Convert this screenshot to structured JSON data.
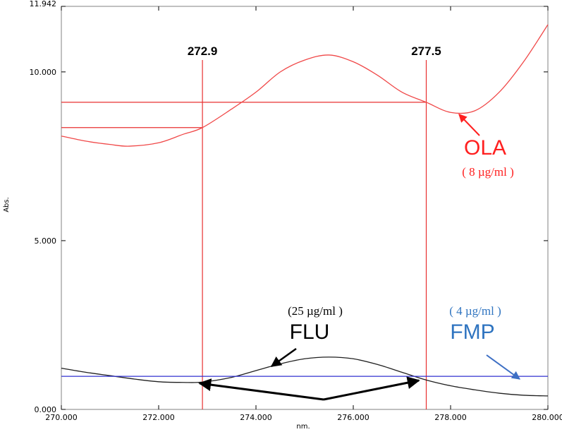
{
  "chart_data": {
    "type": "line",
    "xlabel": "nm.",
    "ylabel": "Abs.",
    "xlim": [
      270.0,
      280.0
    ],
    "ylim": [
      0.0,
      11.942
    ],
    "x_ticks": [
      "270.000",
      "272.000",
      "274.000",
      "276.000",
      "278.000",
      "280.000"
    ],
    "y_ticks": [
      {
        "value": 0.0,
        "label": "0.000"
      },
      {
        "value": 5.0,
        "label": "5.000"
      },
      {
        "value": 10.0,
        "label": "10.000"
      },
      {
        "value": 11.942,
        "label": "11.942"
      }
    ],
    "grid": false,
    "series": [
      {
        "name": "OLA",
        "color": "#f04848",
        "x": [
          270.0,
          270.5,
          271.0,
          271.4,
          272.0,
          272.5,
          272.9,
          273.5,
          274.0,
          274.5,
          275.0,
          275.5,
          276.0,
          276.5,
          277.0,
          277.5,
          278.0,
          278.5,
          279.0,
          279.5,
          280.0
        ],
        "y": [
          8.1,
          7.95,
          7.85,
          7.8,
          7.9,
          8.15,
          8.35,
          8.9,
          9.4,
          10.0,
          10.35,
          10.5,
          10.3,
          9.9,
          9.4,
          9.1,
          8.8,
          8.85,
          9.4,
          10.3,
          11.4
        ]
      },
      {
        "name": "FLU",
        "color": "#202020",
        "x": [
          270.0,
          270.5,
          271.0,
          271.5,
          272.0,
          272.5,
          272.9,
          273.5,
          274.0,
          274.5,
          275.0,
          275.5,
          276.0,
          276.5,
          277.0,
          277.5,
          278.0,
          278.5,
          279.0,
          279.5,
          280.0
        ],
        "y": [
          1.22,
          1.1,
          1.0,
          0.9,
          0.82,
          0.8,
          0.81,
          0.95,
          1.15,
          1.35,
          1.5,
          1.55,
          1.5,
          1.33,
          1.1,
          0.87,
          0.7,
          0.58,
          0.48,
          0.42,
          0.4
        ]
      },
      {
        "name": "FMP",
        "color": "#3030d0",
        "x": [
          270.0,
          280.0
        ],
        "y": [
          0.98,
          0.98
        ]
      }
    ],
    "markers": [
      {
        "x": 272.9,
        "label": "272.9",
        "level": 8.35
      },
      {
        "x": 277.5,
        "label": "277.5",
        "level": 9.1
      }
    ],
    "annotations": [
      {
        "name": "OLA",
        "concentration": "( 8 µg/ml )",
        "color": "#ff2020"
      },
      {
        "name": "FLU",
        "concentration": "(25 µg/ml )",
        "color": "#000000"
      },
      {
        "name": "FMP",
        "concentration": "( 4 µg/ml )",
        "color": "#2f74c0"
      }
    ]
  },
  "colors": {
    "marker_line": "#e83030",
    "frame": "#808080"
  }
}
